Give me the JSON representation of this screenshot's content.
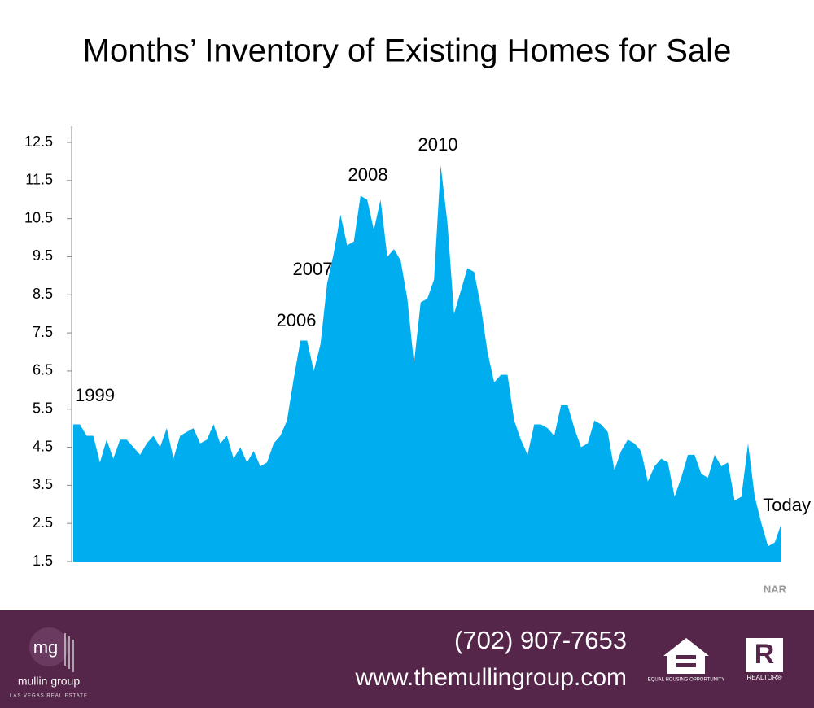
{
  "chart_data": {
    "type": "area",
    "title": "Months’ Inventory of Existing Homes for Sale",
    "color": "#00adef",
    "ylim": [
      1.5,
      12.5
    ],
    "yticks": [
      1.5,
      2.5,
      3.5,
      4.5,
      5.5,
      6.5,
      7.5,
      8.5,
      9.5,
      10.5,
      11.5,
      12.5
    ],
    "annotations": [
      "1999",
      "2006",
      "2007",
      "2008",
      "2010",
      "Today"
    ],
    "source": "NAR",
    "values": [
      5.1,
      5.1,
      4.8,
      4.8,
      4.1,
      4.7,
      4.2,
      4.7,
      4.7,
      4.5,
      4.3,
      4.6,
      4.8,
      4.5,
      5.0,
      4.2,
      4.8,
      4.9,
      5.0,
      4.6,
      4.7,
      5.1,
      4.6,
      4.8,
      4.2,
      4.5,
      4.1,
      4.4,
      4.0,
      4.1,
      4.6,
      4.8,
      5.2,
      6.3,
      7.3,
      7.3,
      6.5,
      7.2,
      8.8,
      9.6,
      10.6,
      9.8,
      9.9,
      11.1,
      11.0,
      10.2,
      11.0,
      9.5,
      9.7,
      9.4,
      8.4,
      6.7,
      8.3,
      8.4,
      8.9,
      11.9,
      10.4,
      8.0,
      8.6,
      9.2,
      9.1,
      8.2,
      7.0,
      6.2,
      6.4,
      6.4,
      5.2,
      4.7,
      4.3,
      5.1,
      5.1,
      5.0,
      4.8,
      5.6,
      5.6,
      5.0,
      4.5,
      4.6,
      5.2,
      5.1,
      4.9,
      3.9,
      4.4,
      4.7,
      4.6,
      4.4,
      3.6,
      4.0,
      4.2,
      4.1,
      3.2,
      3.7,
      4.3,
      4.3,
      3.8,
      3.7,
      4.3,
      4.0,
      4.1,
      3.1,
      3.2,
      4.6,
      3.2,
      2.5,
      1.9,
      2.0,
      2.5
    ]
  },
  "footer": {
    "phone": "(702) 907-7653",
    "website": "www.themullingroup.com",
    "logo_mark": "mg",
    "logo_name": "mullin group",
    "logo_tagline": "LAS VEGAS REAL ESTATE",
    "equal_housing": "EQUAL HOUSING OPPORTUNITY",
    "realtor": "REALTOR®"
  }
}
